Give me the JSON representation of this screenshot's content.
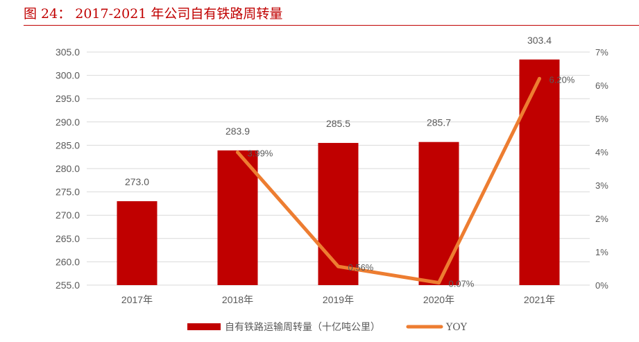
{
  "figure": {
    "caption": "图 24： 2017-2021 年公司自有铁路周转量"
  },
  "colors": {
    "bar": "#c00000",
    "line": "#ed7d31",
    "caption": "#c00000",
    "axis_text": "#595959",
    "grid": "#d9d9d9"
  },
  "chart_data": {
    "type": "bar",
    "categories": [
      "2017年",
      "2018年",
      "2019年",
      "2020年",
      "2021年"
    ],
    "series": [
      {
        "name": "自有铁路运输周转量（十亿吨公里）",
        "type": "bar",
        "axis": "left",
        "values": [
          273.0,
          283.9,
          285.5,
          285.7,
          303.4
        ],
        "labels": [
          "273.0",
          "283.9",
          "285.5",
          "285.7",
          "303.4"
        ]
      },
      {
        "name": "YOY",
        "type": "line",
        "axis": "right",
        "values": [
          null,
          3.99,
          0.56,
          0.07,
          6.2
        ],
        "labels": [
          "",
          "3.99%",
          "0.56%",
          "0.07%",
          "6.20%"
        ]
      }
    ],
    "y_left": {
      "lim": [
        255.0,
        305.0
      ],
      "ticks": [
        "305.0",
        "300.0",
        "295.0",
        "290.0",
        "285.0",
        "280.0",
        "275.0",
        "270.0",
        "265.0",
        "260.0",
        "255.0"
      ]
    },
    "y_right": {
      "lim": [
        0,
        7
      ],
      "ticks": [
        "7%",
        "6%",
        "5%",
        "4%",
        "3%",
        "2%",
        "1%",
        "0%"
      ]
    },
    "grid": true,
    "legend": "bottom"
  }
}
